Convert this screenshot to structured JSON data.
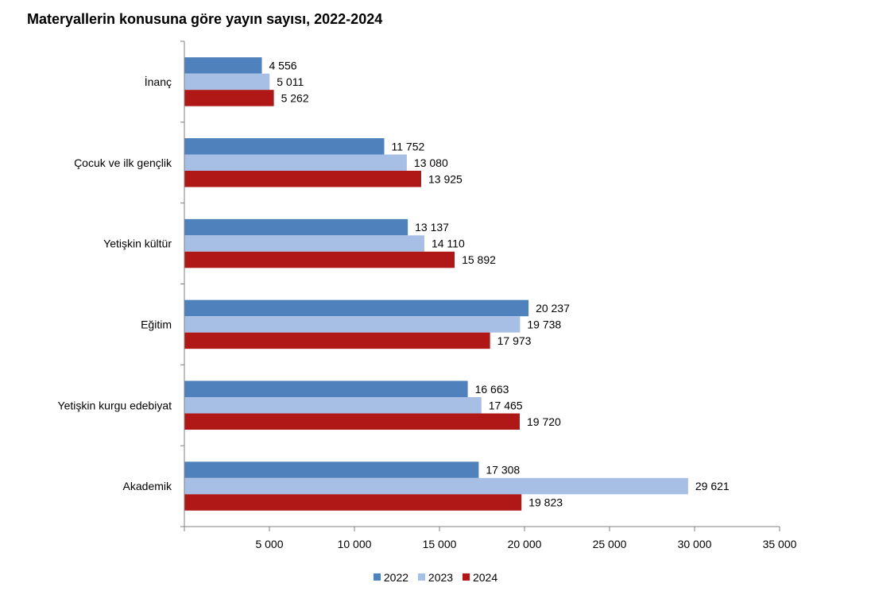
{
  "chart_data": {
    "type": "bar",
    "orientation": "horizontal",
    "title": "Materyallerin konusuna göre yayın sayısı, 2022-2024",
    "categories": [
      "İnanç",
      "Çocuk ve ilk gençlik",
      "Yetişkin kültür",
      "Eğitim",
      "Yetişkin kurgu edebiyat",
      "Akademik"
    ],
    "series": [
      {
        "name": "2022",
        "color": "#4f81bd",
        "values": [
          4556,
          11752,
          13137,
          20237,
          16663,
          17308
        ]
      },
      {
        "name": "2023",
        "color": "#a7bfe4",
        "values": [
          5011,
          13080,
          14110,
          19738,
          17465,
          29621
        ]
      },
      {
        "name": "2024",
        "color": "#b01818",
        "values": [
          5262,
          13925,
          15892,
          17973,
          19720,
          19823
        ]
      }
    ],
    "xlim": [
      0,
      35000
    ],
    "xticks": [
      5000,
      10000,
      15000,
      20000,
      25000,
      30000,
      35000
    ],
    "xtick_labels": [
      "5 000",
      "10 000",
      "15 000",
      "20 000",
      "25 000",
      "30 000",
      "35 000"
    ],
    "data_labels": [
      [
        "4 556",
        "11 752",
        "13 137",
        "20 237",
        "16 663",
        "17 308"
      ],
      [
        "5 011",
        "13 080",
        "14 110",
        "19 738",
        "17 465",
        "29 621"
      ],
      [
        "5 262",
        "13 925",
        "15 892",
        "17 973",
        "19 720",
        "19 823"
      ]
    ],
    "legend_position": "bottom",
    "grid": false
  }
}
